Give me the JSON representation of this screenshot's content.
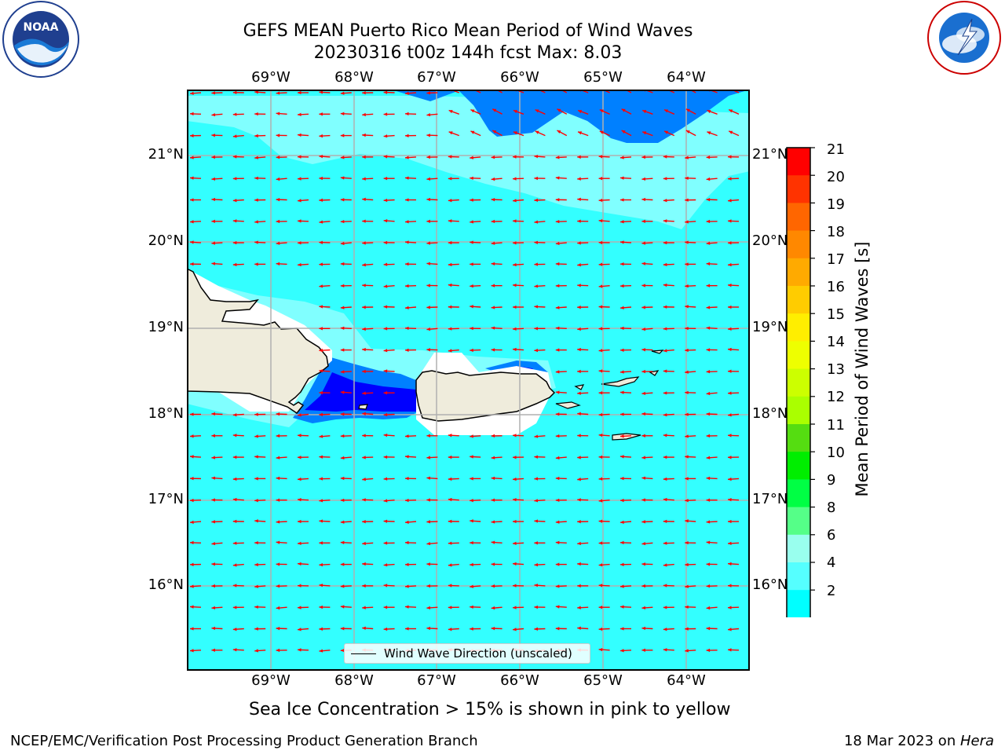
{
  "header": {
    "title_line1": "GEFS MEAN Puerto Rico Mean Period of Wind Waves",
    "title_line2": "20230316 t00z 144h fcst   Max: 8.03"
  },
  "logos": {
    "left": {
      "name": "NOAA",
      "ring_text": "NATIONAL OCEANIC AND ATMOSPHERIC ADMINISTRATION · U.S. DEPARTMENT OF COMMERCE ·"
    },
    "right": {
      "name": "NATIONAL WEATHER SERVICE"
    }
  },
  "map": {
    "lon_labels": [
      "69°W",
      "68°W",
      "67°W",
      "66°W",
      "65°W",
      "64°W"
    ],
    "lat_labels": [
      "21°N",
      "20°N",
      "19°N",
      "18°N",
      "17°N",
      "16°N"
    ],
    "legend_label": "Wind Wave Direction (unscaled)",
    "colors": {
      "ocean": "#33ffff",
      "light_band": "#80ffff",
      "mid_blue": "#0080ff",
      "deep_blue": "#0000ff",
      "land": "#efecdc",
      "arrow": "#ff0000",
      "grid": "#b0b0b0"
    }
  },
  "colorbar": {
    "title": "Mean Period of Wind Waves [s]",
    "ticks": [
      "21",
      "20",
      "19",
      "18",
      "17",
      "16",
      "15",
      "14",
      "13",
      "12",
      "11",
      "10",
      "9",
      "8",
      "6",
      "4",
      "2"
    ],
    "colors": [
      "#ff0000",
      "#ff3300",
      "#ff6600",
      "#ff8800",
      "#ffaa00",
      "#ffcc00",
      "#ffee00",
      "#eeff00",
      "#ccff00",
      "#aaff00",
      "#55dd11",
      "#00ee00",
      "#00ff44",
      "#55ff88",
      "#99ffee",
      "#55ffff",
      "#00ffff",
      "#0088ff",
      "#0000ff"
    ]
  },
  "caption": "Sea Ice Concentration > 15% is shown in pink to yellow",
  "footer": {
    "left": "NCEP/EMC/Verification Post Processing Product Generation Branch",
    "date": "18 Mar 2023 on ",
    "machine": "Hera"
  }
}
